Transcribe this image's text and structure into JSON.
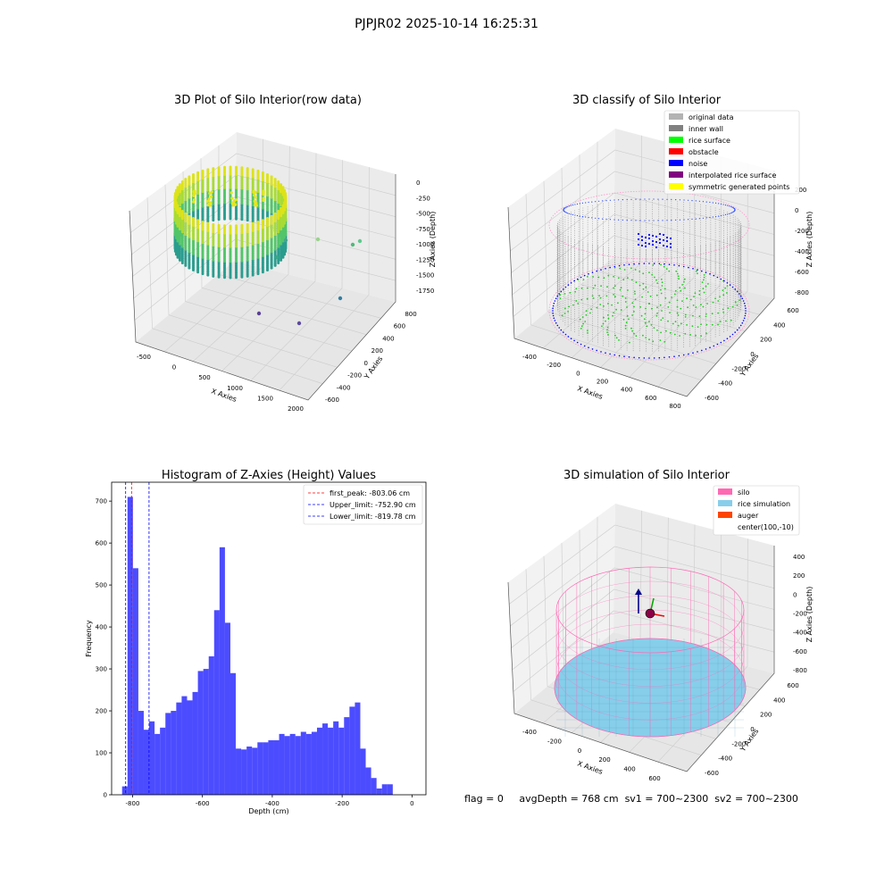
{
  "figure": {
    "suptitle": "PJPJR02 2025-10-14 16:25:31"
  },
  "panels": {
    "raw": {
      "title": "3D Plot of Silo Interior(row data)",
      "xlabel": "X Axies",
      "ylabel": "Y Axies",
      "zlabel": "Z Axies (Depth)",
      "xticks": [
        "-500",
        "0",
        "500",
        "1000",
        "1500",
        "2000"
      ],
      "yticks": [
        "-600",
        "-400",
        "-200",
        "0",
        "200",
        "400",
        "600",
        "800"
      ],
      "zticks": [
        "0",
        "-250",
        "-500",
        "-750",
        "-1000",
        "-1250",
        "-1500",
        "-1750"
      ]
    },
    "classify": {
      "title": "3D classify of Silo Interior",
      "xlabel": "X Axies",
      "ylabel": "Y Axies",
      "zlabel": "Z Axies (Depth)",
      "xticks": [
        "-400",
        "-200",
        "0",
        "200",
        "400",
        "600",
        "800"
      ],
      "yticks": [
        "-600",
        "-400",
        "-200",
        "0",
        "200",
        "400",
        "600"
      ],
      "zticks": [
        "200",
        "0",
        "-200",
        "-400",
        "-600",
        "-800"
      ],
      "legend": [
        {
          "label": "original data",
          "color": "#b3b3b3"
        },
        {
          "label": "inner wall",
          "color": "#808080"
        },
        {
          "label": "rice surface",
          "color": "#00ff00"
        },
        {
          "label": "obstacle",
          "color": "#ff0000"
        },
        {
          "label": "noise",
          "color": "#0000ff"
        },
        {
          "label": "interpolated rice surface",
          "color": "#800080"
        },
        {
          "label": "symmetric generated points",
          "color": "#ffff00"
        }
      ]
    },
    "simulation": {
      "title": "3D simulation of Silo Interior",
      "xlabel": "X Axies",
      "ylabel": "Y Axies",
      "zlabel": "Z Axies (Depth)",
      "xticks": [
        "-400",
        "-200",
        "0",
        "200",
        "400",
        "600"
      ],
      "yticks": [
        "-600",
        "-400",
        "-200",
        "0",
        "200",
        "400",
        "600"
      ],
      "zticks": [
        "400",
        "200",
        "0",
        "-200",
        "-400",
        "-600",
        "-800"
      ],
      "legend": [
        {
          "label": "silo",
          "color": "#ff69b4"
        },
        {
          "label": "rice simulation",
          "color": "#87ceeb"
        },
        {
          "label": "auger",
          "color": "#ff4500"
        },
        {
          "label": "center(100,-10)",
          "color": ""
        }
      ]
    }
  },
  "status": {
    "flag": "flag = 0",
    "avg_depth": "avgDepth = 768 cm",
    "sv1": "sv1 = 700~2300",
    "sv2": "sv2 = 700~2300"
  },
  "chart_data": [
    {
      "type": "scatter",
      "title": "3D Plot of Silo Interior(row data)",
      "xlabel": "X Axies",
      "ylabel": "Y Axies",
      "zlabel": "Z Axies (Depth)",
      "xlim": [
        -700,
        2100
      ],
      "ylim": [
        -700,
        900
      ],
      "zlim": [
        -1900,
        100
      ],
      "grid": true
    },
    {
      "type": "scatter",
      "title": "3D classify of Silo Interior",
      "xlabel": "X Axies",
      "ylabel": "Y Axies",
      "zlabel": "Z Axies (Depth)",
      "xlim": [
        -500,
        800
      ],
      "ylim": [
        -700,
        700
      ],
      "zlim": [
        -900,
        300
      ],
      "grid": true,
      "legend_position": "top-right"
    },
    {
      "type": "bar",
      "title": "Histogram of Z-Axies (Height) Values",
      "xlabel": "Depth (cm)",
      "ylabel": "Frequency",
      "xlim": [
        -860,
        40
      ],
      "ylim": [
        0,
        745
      ],
      "xticks": [
        -800,
        -600,
        -400,
        -200,
        0
      ],
      "yticks": [
        0,
        100,
        200,
        300,
        400,
        500,
        600,
        700
      ],
      "bin_start": -830,
      "bin_width": 15.5,
      "values": [
        20,
        710,
        540,
        200,
        155,
        175,
        145,
        160,
        195,
        200,
        220,
        235,
        225,
        245,
        295,
        300,
        330,
        440,
        590,
        410,
        290,
        110,
        108,
        115,
        112,
        125,
        125,
        130,
        130,
        145,
        140,
        145,
        140,
        150,
        145,
        150,
        160,
        170,
        160,
        175,
        160,
        185,
        210,
        220,
        110,
        65,
        40,
        15,
        25,
        25
      ],
      "color": "#0000ff",
      "lines": [
        {
          "label": "first_peak: -803.06 cm",
          "x": -803.06,
          "color": "#ff0000"
        },
        {
          "label": "Upper_limit: -752.90 cm",
          "x": -752.9,
          "color": "#0000ff"
        },
        {
          "label": "Lower_limit: -819.78 cm",
          "x": -819.78,
          "color": "#0000ff"
        }
      ],
      "legend_position": "top-right"
    },
    {
      "type": "scatter",
      "title": "3D simulation of Silo Interior",
      "xlabel": "X Axies",
      "ylabel": "Y Axies",
      "zlabel": "Z Axies (Depth)",
      "xlim": [
        -500,
        700
      ],
      "ylim": [
        -700,
        700
      ],
      "zlim": [
        -900,
        450
      ],
      "grid": true,
      "legend_position": "top-right"
    }
  ]
}
